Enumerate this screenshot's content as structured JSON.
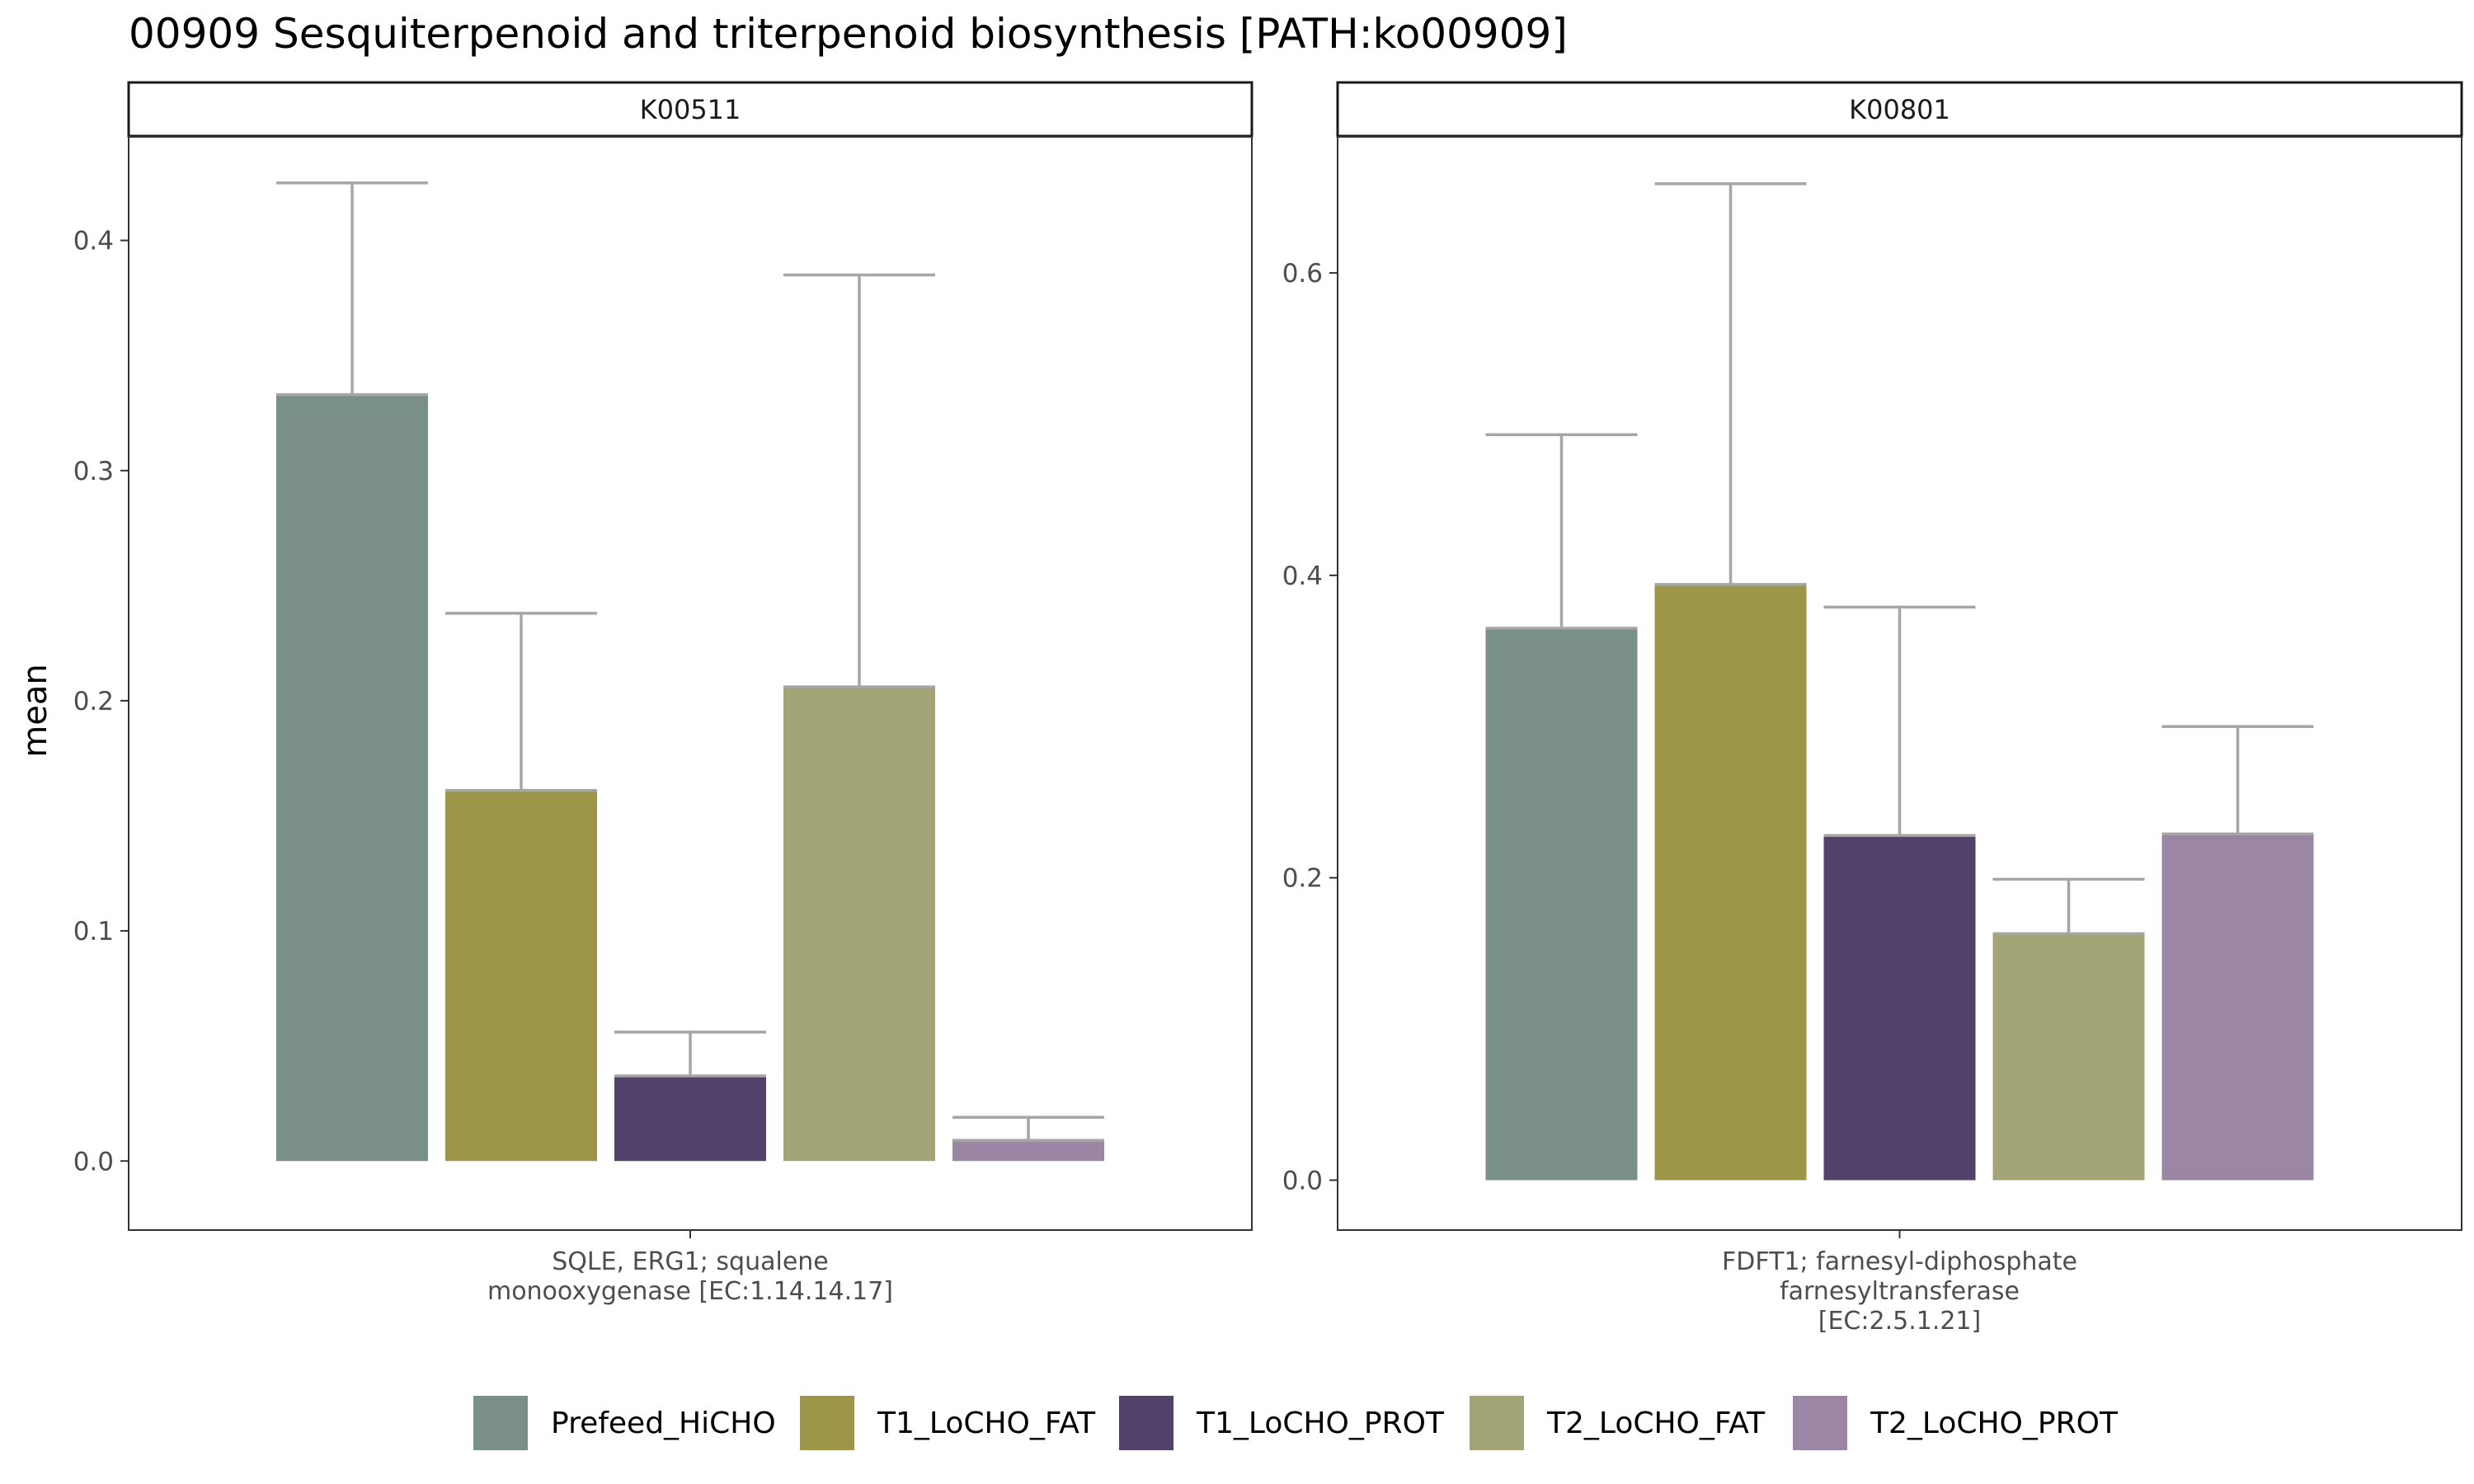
{
  "colors": {
    "Prefeed_HiCHO": "#7a8f87",
    "T1_LoCHO_FAT": "#9d9548",
    "T1_LoCHO_PROT": "#52416b",
    "T2_LoCHO_FAT": "#a2a475",
    "T2_LoCHO_PROT": "#9b87a5",
    "errorbar": "#a6a6a6",
    "axis_text": "#4d4d4d"
  },
  "chart_data": {
    "type": "bar",
    "title": "00909 Sesquiterpenoid and triterpenoid biosynthesis [PATH:ko00909]",
    "ylabel": "mean",
    "legend": {
      "position": "bottom",
      "entries": [
        "Prefeed_HiCHO",
        "T1_LoCHO_FAT",
        "T1_LoCHO_PROT",
        "T2_LoCHO_FAT",
        "T2_LoCHO_PROT"
      ]
    },
    "grid": false,
    "panels": [
      {
        "strip": "K00511",
        "x_category_lines": [
          "SQLE, ERG1; squalene",
          "monooxygenase [EC:1.14.14.17]"
        ],
        "ylim": [
          -0.03,
          0.445
        ],
        "yticks": [
          0.0,
          0.1,
          0.2,
          0.3,
          0.4
        ],
        "ytick_labels": [
          "0.0",
          "0.1",
          "0.2",
          "0.3",
          "0.4"
        ],
        "bars": [
          {
            "group": "Prefeed_HiCHO",
            "value": 0.333,
            "err_upper": 0.425
          },
          {
            "group": "T1_LoCHO_FAT",
            "value": 0.161,
            "err_upper": 0.238
          },
          {
            "group": "T1_LoCHO_PROT",
            "value": 0.037,
            "err_upper": 0.056
          },
          {
            "group": "T2_LoCHO_FAT",
            "value": 0.206,
            "err_upper": 0.385
          },
          {
            "group": "T2_LoCHO_PROT",
            "value": 0.009,
            "err_upper": 0.019
          }
        ]
      },
      {
        "strip": "K00801",
        "x_category_lines": [
          "FDFT1; farnesyl-diphosphate",
          "farnesyltransferase",
          "[EC:2.5.1.21]"
        ],
        "ylim": [
          -0.033,
          0.69
        ],
        "yticks": [
          0.0,
          0.2,
          0.4,
          0.6
        ],
        "ytick_labels": [
          "0.0",
          "0.2",
          "0.4",
          "0.6"
        ],
        "bars": [
          {
            "group": "Prefeed_HiCHO",
            "value": 0.365,
            "err_upper": 0.493
          },
          {
            "group": "T1_LoCHO_FAT",
            "value": 0.394,
            "err_upper": 0.659
          },
          {
            "group": "T1_LoCHO_PROT",
            "value": 0.228,
            "err_upper": 0.379
          },
          {
            "group": "T2_LoCHO_FAT",
            "value": 0.163,
            "err_upper": 0.199
          },
          {
            "group": "T2_LoCHO_PROT",
            "value": 0.229,
            "err_upper": 0.3
          }
        ]
      }
    ]
  }
}
